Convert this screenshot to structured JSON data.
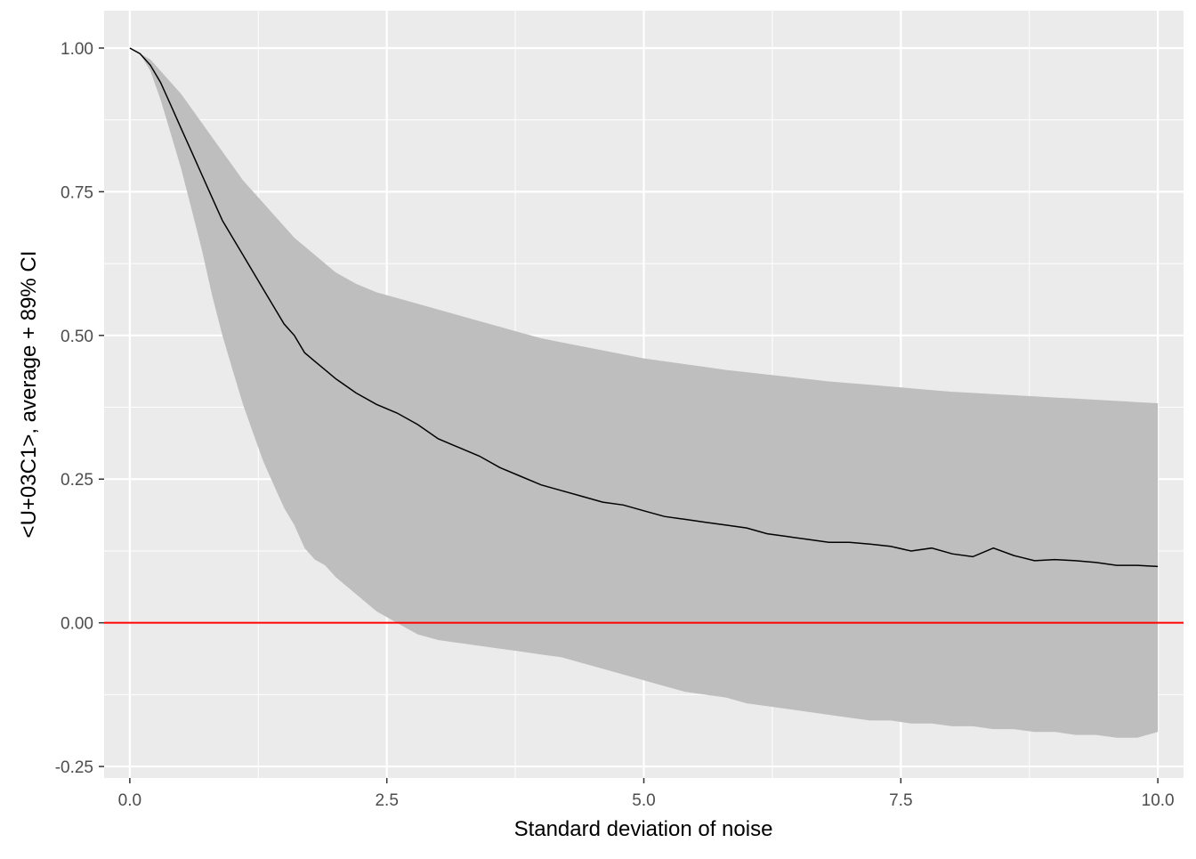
{
  "chart_data": {
    "type": "area",
    "title": "",
    "xlabel": "Standard deviation of noise",
    "ylabel": "<U+03C1>, average + 89% CI",
    "xlim": [
      -0.25,
      10.25
    ],
    "ylim": [
      -0.27,
      1.065
    ],
    "x_ticks": [
      0.0,
      2.5,
      5.0,
      7.5,
      10.0
    ],
    "x_tick_labels": [
      "0.0",
      "2.5",
      "5.0",
      "7.5",
      "10.0"
    ],
    "y_ticks": [
      -0.25,
      0.0,
      0.25,
      0.5,
      0.75,
      1.0
    ],
    "y_tick_labels": [
      "-0.25",
      "0.00",
      "0.25",
      "0.50",
      "0.75",
      "1.00"
    ],
    "grid": true,
    "legend": "none",
    "colors": {
      "panel": "#ebebeb",
      "grid": "#ffffff",
      "ribbon": "#bebebe",
      "mean_line": "#000000",
      "reference_line": "#ff0000"
    },
    "reference_line": {
      "y": 0.0
    },
    "series": [
      {
        "x": [
          0,
          0.1,
          0.2,
          0.3,
          0.4,
          0.5,
          0.6,
          0.7,
          0.8,
          0.9,
          1.0,
          1.1,
          1.2,
          1.3,
          1.4,
          1.5,
          1.6,
          1.7,
          1.8,
          1.9,
          2.0,
          2.2,
          2.4,
          2.6,
          2.8,
          3.0,
          3.2,
          3.4,
          3.6,
          3.8,
          4.0,
          4.2,
          4.4,
          4.6,
          4.8,
          5.0,
          5.2,
          5.4,
          5.6,
          5.8,
          6.0,
          6.2,
          6.4,
          6.6,
          6.8,
          7.0,
          7.2,
          7.4,
          7.6,
          7.8,
          8.0,
          8.2,
          8.4,
          8.6,
          8.8,
          9.0,
          9.2,
          9.4,
          9.6,
          9.8,
          10.0
        ],
        "mean": [
          1.0,
          0.99,
          0.97,
          0.94,
          0.9,
          0.86,
          0.82,
          0.78,
          0.74,
          0.7,
          0.67,
          0.64,
          0.61,
          0.58,
          0.55,
          0.52,
          0.5,
          0.47,
          0.455,
          0.44,
          0.425,
          0.4,
          0.38,
          0.365,
          0.345,
          0.32,
          0.305,
          0.29,
          0.27,
          0.255,
          0.24,
          0.23,
          0.22,
          0.21,
          0.205,
          0.195,
          0.185,
          0.18,
          0.175,
          0.17,
          0.165,
          0.155,
          0.15,
          0.145,
          0.14,
          0.14,
          0.137,
          0.133,
          0.125,
          0.13,
          0.12,
          0.115,
          0.13,
          0.117,
          0.108,
          0.11,
          0.108,
          0.105,
          0.1,
          0.1,
          0.098
        ],
        "lower": [
          1.0,
          0.99,
          0.96,
          0.91,
          0.85,
          0.79,
          0.72,
          0.65,
          0.57,
          0.5,
          0.44,
          0.38,
          0.33,
          0.28,
          0.24,
          0.2,
          0.17,
          0.13,
          0.11,
          0.1,
          0.08,
          0.05,
          0.02,
          0.0,
          -0.02,
          -0.03,
          -0.035,
          -0.04,
          -0.045,
          -0.05,
          -0.055,
          -0.06,
          -0.07,
          -0.08,
          -0.09,
          -0.1,
          -0.11,
          -0.12,
          -0.125,
          -0.13,
          -0.14,
          -0.145,
          -0.15,
          -0.155,
          -0.16,
          -0.165,
          -0.17,
          -0.17,
          -0.175,
          -0.175,
          -0.18,
          -0.18,
          -0.185,
          -0.185,
          -0.19,
          -0.19,
          -0.195,
          -0.195,
          -0.2,
          -0.2,
          -0.19
        ],
        "upper": [
          1.0,
          0.99,
          0.98,
          0.96,
          0.94,
          0.92,
          0.895,
          0.87,
          0.845,
          0.82,
          0.795,
          0.77,
          0.75,
          0.73,
          0.71,
          0.69,
          0.67,
          0.655,
          0.64,
          0.625,
          0.61,
          0.59,
          0.575,
          0.565,
          0.555,
          0.545,
          0.535,
          0.525,
          0.515,
          0.505,
          0.495,
          0.488,
          0.481,
          0.474,
          0.467,
          0.46,
          0.455,
          0.45,
          0.445,
          0.44,
          0.436,
          0.432,
          0.428,
          0.424,
          0.42,
          0.417,
          0.414,
          0.411,
          0.408,
          0.405,
          0.402,
          0.4,
          0.398,
          0.396,
          0.394,
          0.392,
          0.39,
          0.388,
          0.386,
          0.384,
          0.382
        ]
      }
    ]
  }
}
